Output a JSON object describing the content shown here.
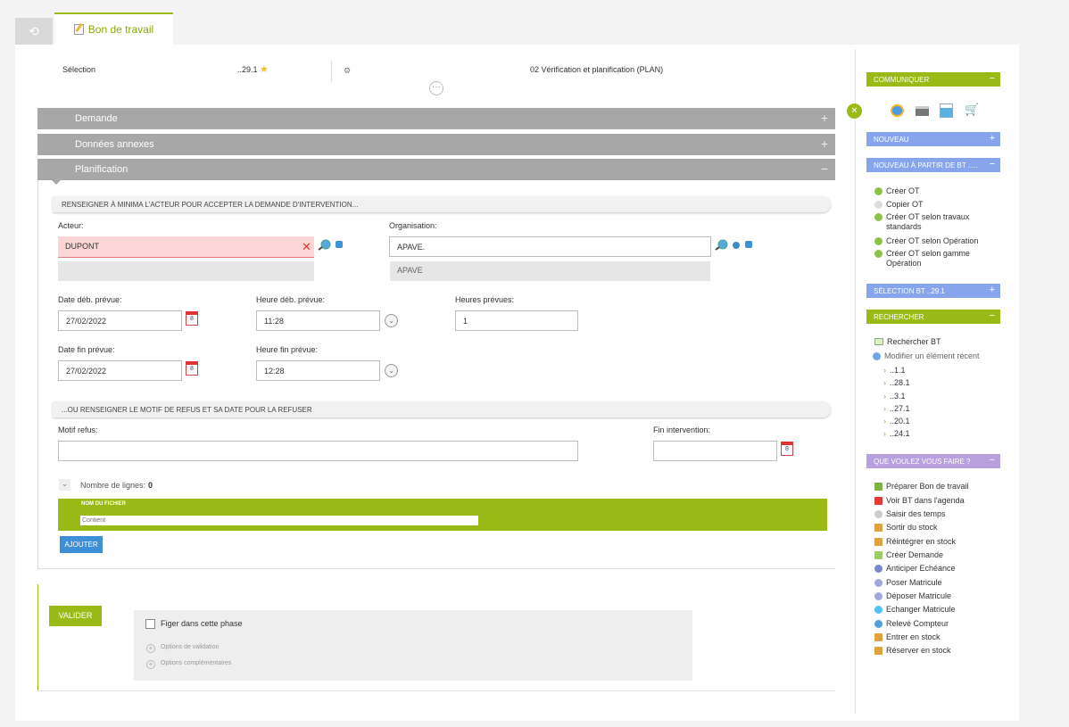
{
  "tabs": {
    "active_label": "Bon de travail"
  },
  "header": {
    "selection_label": "Sélection",
    "selection_value": "..29.1",
    "phase": "02 Vérification et planification (PLAN)"
  },
  "sections": {
    "demande": "Demande",
    "donnees": "Données annexes",
    "planification": "Planification"
  },
  "planif": {
    "subhead1": "RENSEIGNER À MINIMA L'ACTEUR POUR ACCEPTER LA DEMANDE D'INTERVENTION...",
    "acteur_label": "Acteur:",
    "acteur_value": "DUPONT",
    "organisation_label": "Organisation:",
    "organisation_value": "APAVE.",
    "organisation_sub": "APAVE",
    "date_deb_label": "Date déb. prévue:",
    "date_deb_value": "27/02/2022",
    "heure_deb_label": "Heure déb. prévue:",
    "heure_deb_value": "11:28",
    "heures_prev_label": "Heures prévues:",
    "heures_prev_value": "1",
    "date_fin_label": "Date fin prévue:",
    "date_fin_value": "27/02/2022",
    "heure_fin_label": "Heure fin prévue:",
    "heure_fin_value": "12:28",
    "subhead2": "...OU RENSEIGNER LE MOTIF DE REFUS ET SA DATE POUR LA REFUSER",
    "motif_label": "Motif refus:",
    "motif_value": "",
    "fin_label": "Fin intervention:",
    "fin_value": "",
    "lines_label": "Nombre de lignes:",
    "lines_count": "0",
    "file_col": "NOM DU FICHIER",
    "file_filter_placeholder": "Contient",
    "add_button": "AJOUTER",
    "calendar_day": "8"
  },
  "validation": {
    "button": "VALIDER",
    "freeze_label": "Figer dans cette phase",
    "opt1": "Options de validation",
    "opt2": "Options complémentaires"
  },
  "sidebar": {
    "communiquer": "COMMUNIQUER",
    "nouveau": "NOUVEAU",
    "nouveau_bt": "NOUVEAU À PARTIR DE BT .....",
    "nouveau_items": [
      "Créer OT",
      "Copier OT",
      "Créer OT selon travaux standards",
      "Créer OT selon Opération",
      "Créer OT selon gamme Opération"
    ],
    "selection_bt": "SÉLECTION BT ..29.1",
    "rechercher": "RECHERCHER",
    "rechercher_bt": "Rechercher BT",
    "modifier_recent": "Modifier un élément récent",
    "recent_items": [
      "..1.1",
      "..28.1",
      "..3.1",
      "..27.1",
      "..20.1",
      "..24.1"
    ],
    "que_faire": "QUE VOULEZ VOUS FAIRE ?",
    "actions": [
      "Préparer Bon de travail",
      "Voir BT dans l'agenda",
      "Saisir des temps",
      "Sortir du stock",
      "Réintégrer en stock",
      "Créer Demande",
      "Anticiper Echéance",
      "Poser Matricule",
      "Déposer Matricule",
      "Echanger Matricule",
      "Relevé Compteur",
      "Entrer en stock",
      "Réserver en stock"
    ]
  },
  "colors": {
    "accent": "#9aba17",
    "section": "#a7a7a7",
    "sidebar_blue": "#86a5ec",
    "sidebar_purple": "#b8a0dc",
    "error_bg": "#fcd6d6"
  }
}
